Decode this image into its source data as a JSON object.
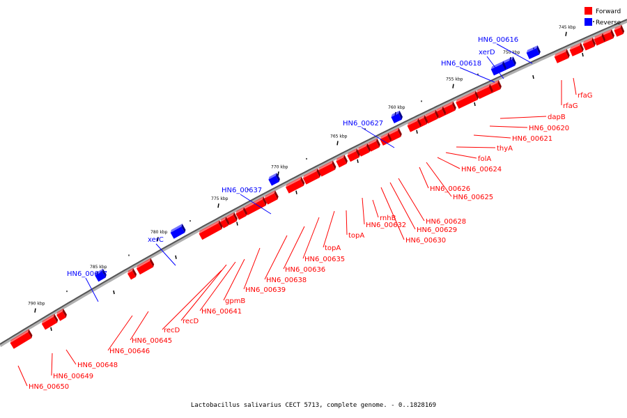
{
  "legend": {
    "forward": {
      "label": "Forward",
      "color": "#ff0000"
    },
    "reverse": {
      "label": "Reverse",
      "color": "#0000ff"
    }
  },
  "caption": "Lactobacillus salivarius CECT 5713, complete genome. - 0..1828169",
  "scale_ticks": [
    "745 kbp",
    "750 kbp",
    "755 kbp",
    "760 kbp",
    "765 kbp",
    "770 kbp",
    "775 kbp",
    "780 kbp",
    "785 kbp",
    "790 kbp"
  ],
  "reverse_labels": [
    "HN6_00616",
    "xerD",
    "HN6_00618",
    "HN6_00627",
    "HN6_00637",
    "xerC",
    "HN6_00647"
  ],
  "forward_labels": [
    "rfaG",
    "rfaG",
    "dapB",
    "HN6_00620",
    "HN6_00621",
    "thyA",
    "folA",
    "HN6_00624",
    "HN6_00626",
    "HN6_00625",
    "HN6_00628",
    "HN6_00629",
    "HN6_00630",
    "rnhB",
    "HN6_00632",
    "topA",
    "topA",
    "HN6_00635",
    "HN6_00636",
    "HN6_00638",
    "HN6_00639",
    "gpmB",
    "HN6_00641",
    "recD",
    "recD",
    "HN6_00645",
    "HN6_00646",
    "HN6_00648",
    "HN6_00649",
    "HN6_00650"
  ]
}
